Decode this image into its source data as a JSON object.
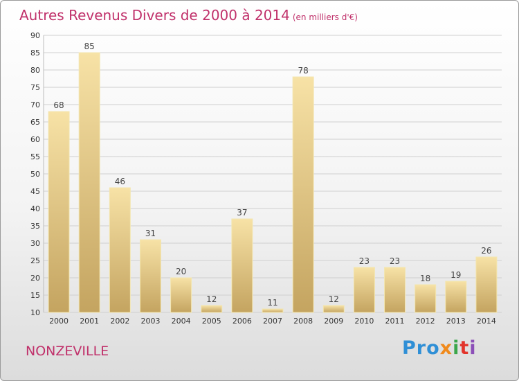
{
  "header": {
    "title": "Autres Revenus Divers de 2000 à 2014",
    "unit": "(en milliers d'€)"
  },
  "footer": {
    "commune": "NONZEVILLE",
    "logo_parts": [
      "Pro",
      "x",
      "i",
      "t",
      "i"
    ]
  },
  "colors": {
    "title": "#c0306a",
    "bar_light": "#f7e2a6",
    "bar_dark": "#c4a460",
    "grid": "#cfcfcf"
  },
  "chart_data": {
    "type": "bar",
    "title": "Autres Revenus Divers de 2000 à 2014",
    "categories": [
      "2000",
      "2001",
      "2002",
      "2003",
      "2004",
      "2005",
      "2006",
      "2007",
      "2008",
      "2009",
      "2010",
      "2011",
      "2012",
      "2013",
      "2014"
    ],
    "values": [
      68,
      85,
      46,
      31,
      20,
      12,
      37,
      11,
      78,
      12,
      23,
      23,
      18,
      19,
      26
    ],
    "ylim": [
      10,
      90
    ],
    "yticks": [
      10,
      15,
      20,
      25,
      30,
      35,
      40,
      45,
      50,
      55,
      60,
      65,
      70,
      75,
      80,
      85,
      90
    ],
    "grid": true,
    "xlabel": "",
    "ylabel": ""
  }
}
